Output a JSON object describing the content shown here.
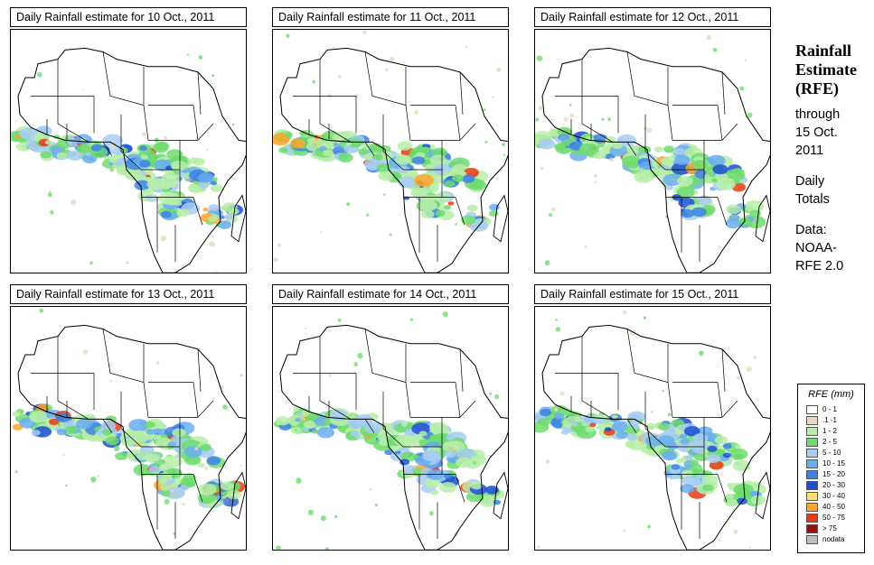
{
  "panels": [
    {
      "caption": "Daily Rainfall estimate for  10 Oct., 2011"
    },
    {
      "caption": "Daily Rainfall estimate for  11 Oct., 2011"
    },
    {
      "caption": "Daily Rainfall estimate for  12 Oct., 2011"
    },
    {
      "caption": "Daily Rainfall estimate for  13 Oct., 2011"
    },
    {
      "caption": "Daily Rainfall estimate for  14 Oct., 2011"
    },
    {
      "caption": "Daily Rainfall estimate for  15 Oct., 2011"
    }
  ],
  "side": {
    "title1": "Rainfall",
    "title2": "Estimate",
    "title3": "(RFE)",
    "through": "through",
    "date1": "15 Oct.",
    "date2": "2011",
    "daily1": "Daily",
    "daily2": "Totals",
    "data1": "Data:",
    "data2": "NOAA-",
    "data3": "RFE 2.0"
  },
  "legend": {
    "title": "RFE (mm)",
    "rows": [
      {
        "label": "0 - 1",
        "color": "#ffffff"
      },
      {
        "label": ".1 -1",
        "color": "#e6dcc0"
      },
      {
        "label": "1 - 2",
        "color": "#b7efa8"
      },
      {
        "label": "2 - 5",
        "color": "#6fdc6f"
      },
      {
        "label": "5 - 10",
        "color": "#a8cdf3"
      },
      {
        "label": "10 - 15",
        "color": "#6aaef0"
      },
      {
        "label": "15 - 20",
        "color": "#3d82e6"
      },
      {
        "label": "20 - 30",
        "color": "#1f4fd6"
      },
      {
        "label": "30 - 40",
        "color": "#ffe26a"
      },
      {
        "label": "40 - 50",
        "color": "#ffa62a"
      },
      {
        "label": "50 - 75",
        "color": "#e83b12"
      },
      {
        "label": "> 75",
        "color": "#9c0d0d"
      },
      {
        "label": "nodata",
        "color": "#bdbdbd"
      }
    ]
  }
}
